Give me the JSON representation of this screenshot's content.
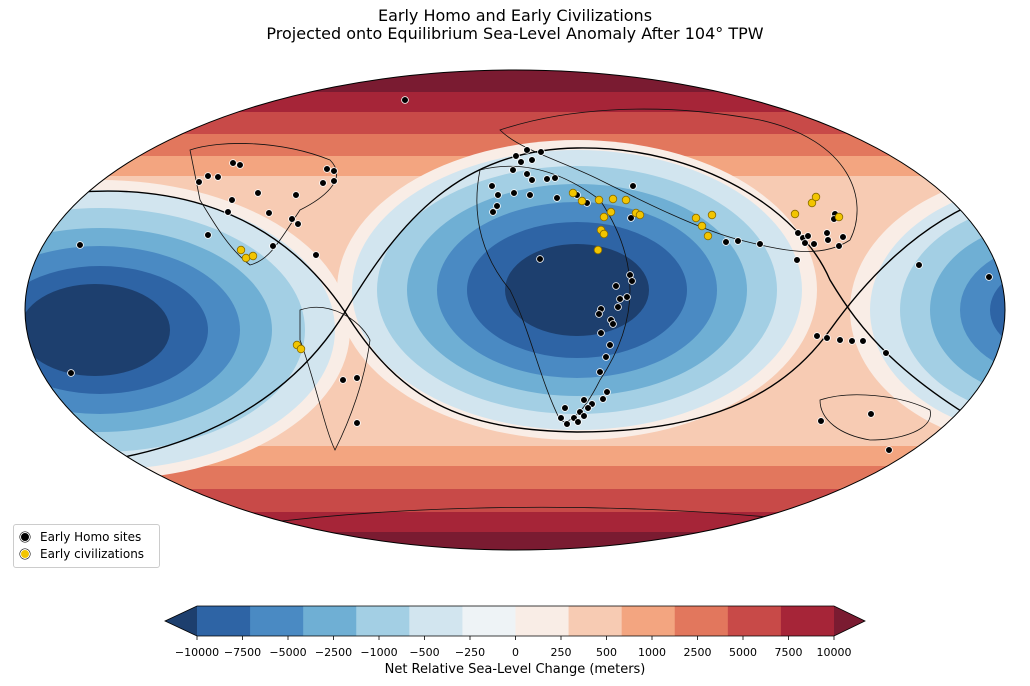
{
  "title": {
    "line1": "Early Homo and Early Civilizations",
    "line2": "Projected onto Equilibrium Sea-Level Anomaly After 104° TPW"
  },
  "legend": {
    "items": [
      {
        "label": "Early Homo sites",
        "color": "#000000"
      },
      {
        "label": "Early civilizations",
        "color": "#f2c500"
      }
    ]
  },
  "colorbar": {
    "label": "Net Relative Sea-Level Change (meters)",
    "ticks": [
      "−10000",
      "−7500",
      "−5000",
      "−2500",
      "−1000",
      "−500",
      "−250",
      "0",
      "250",
      "500",
      "1000",
      "2500",
      "5000",
      "7500",
      "10000"
    ],
    "colors": [
      "#1d3f6e",
      "#2e64a5",
      "#4a8ac3",
      "#6fafd4",
      "#a3cfe4",
      "#d2e5ef",
      "#eef3f6",
      "#f9ede6",
      "#f7cbb3",
      "#f3a580",
      "#e2775d",
      "#c84a48",
      "#a62538",
      "#7a1b31"
    ]
  },
  "map": {
    "ocean_blue_center": "#1d3f6e",
    "homo_sites_count": 110,
    "civilization_sites_count": 25
  }
}
